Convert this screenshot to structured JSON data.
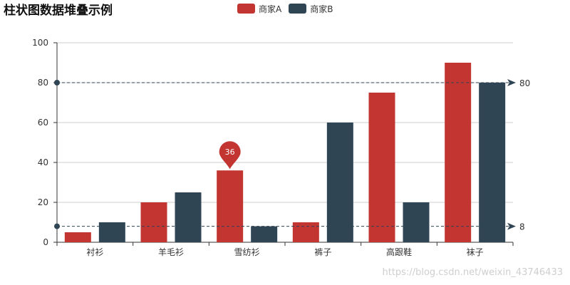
{
  "colors": {
    "series_a": "#c23531",
    "series_b": "#2f4554",
    "grid": "#cccccc",
    "axis": "#333333",
    "markline": "#2f4554"
  },
  "chart_data": {
    "type": "bar",
    "title": "柱状图数据堆叠示例",
    "categories": [
      "衬衫",
      "羊毛衫",
      "雪纺衫",
      "裤子",
      "高跟鞋",
      "袜子"
    ],
    "series": [
      {
        "name": "商家A",
        "values": [
          5,
          20,
          36,
          10,
          75,
          90
        ]
      },
      {
        "name": "商家B",
        "values": [
          10,
          25,
          8,
          60,
          20,
          80
        ]
      }
    ],
    "ylim": [
      0,
      100
    ],
    "yticks": [
      0,
      20,
      40,
      60,
      80,
      100
    ],
    "grid": true,
    "legend_position": "top-center",
    "mark_point": {
      "series": "商家A",
      "category": "雪纺衫",
      "value": 36,
      "label": "36"
    },
    "mark_lines": [
      {
        "value": 80,
        "label": "80"
      },
      {
        "value": 8,
        "label": "8"
      }
    ]
  },
  "watermark": "https://blog.csdn.net/weixin_43746433"
}
